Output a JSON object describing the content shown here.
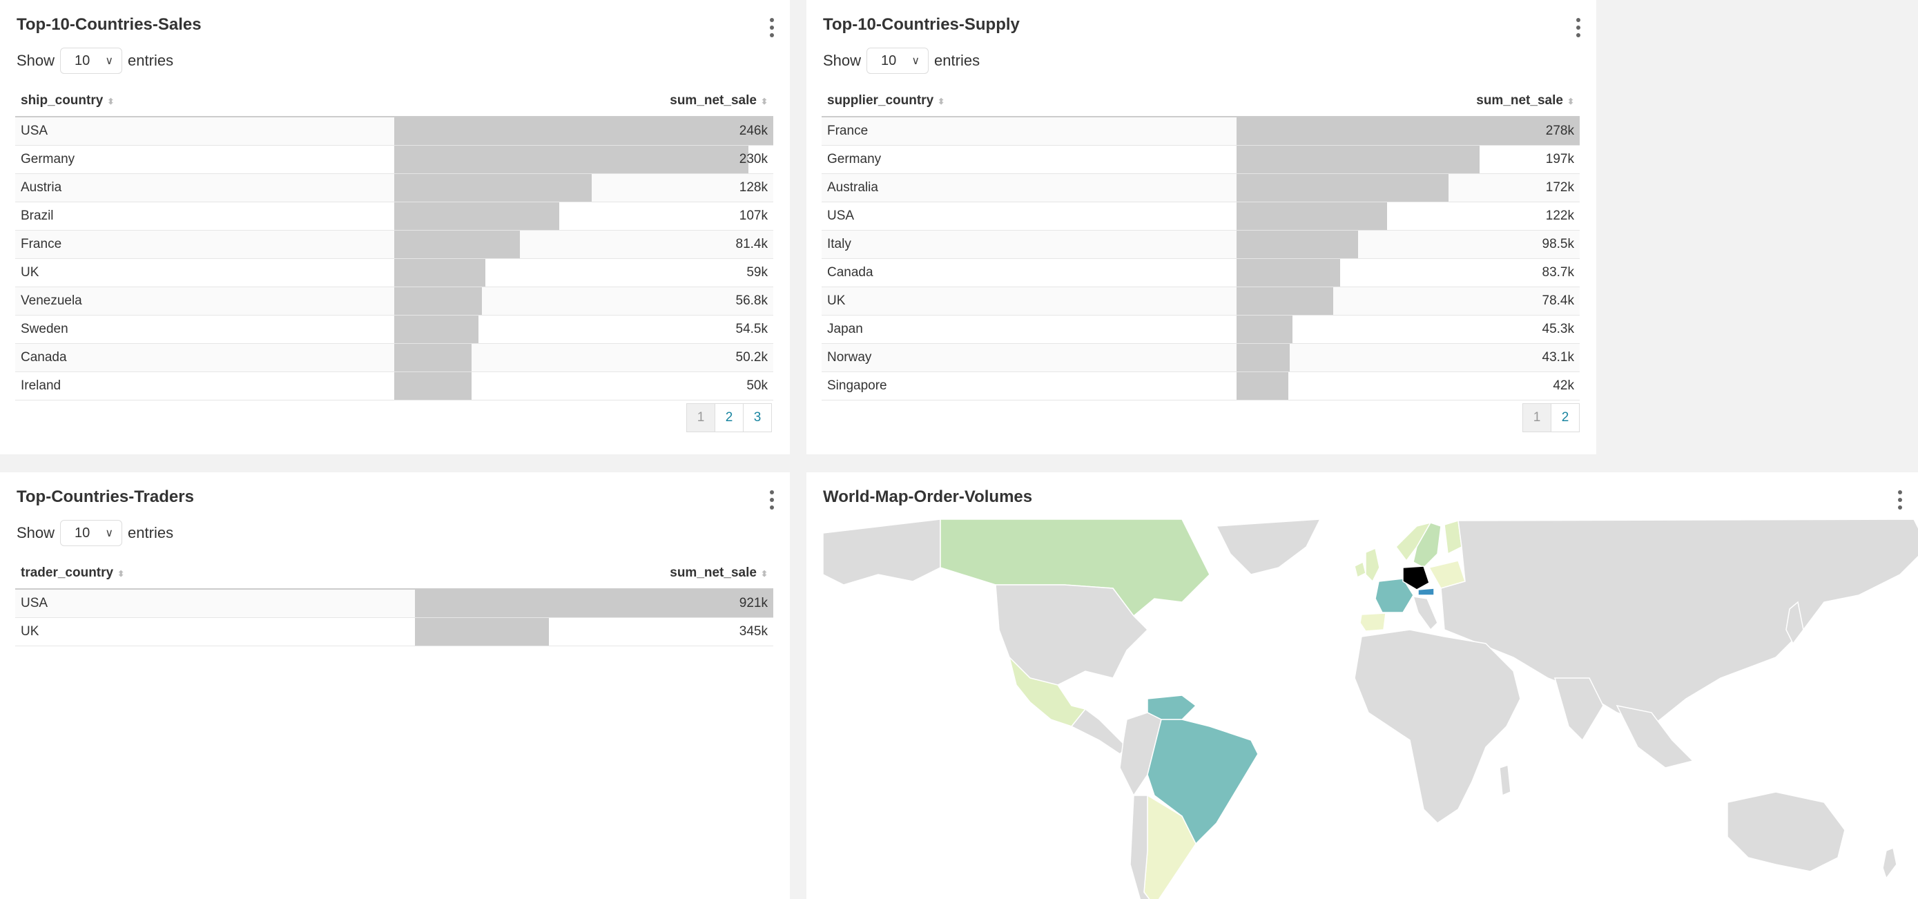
{
  "sales": {
    "title": "Top-10-Countries-Sales",
    "show_label": "Show",
    "entries_label": "entries",
    "page_size": "10",
    "col_country": "ship_country",
    "col_value": "sum_net_sale",
    "rows": [
      {
        "country": "USA",
        "value": "246k",
        "amount": 246
      },
      {
        "country": "Germany",
        "value": "230k",
        "amount": 230
      },
      {
        "country": "Austria",
        "value": "128k",
        "amount": 128
      },
      {
        "country": "Brazil",
        "value": "107k",
        "amount": 107
      },
      {
        "country": "France",
        "value": "81.4k",
        "amount": 81.4
      },
      {
        "country": "UK",
        "value": "59k",
        "amount": 59
      },
      {
        "country": "Venezuela",
        "value": "56.8k",
        "amount": 56.8
      },
      {
        "country": "Sweden",
        "value": "54.5k",
        "amount": 54.5
      },
      {
        "country": "Canada",
        "value": "50.2k",
        "amount": 50.2
      },
      {
        "country": "Ireland",
        "value": "50k",
        "amount": 50
      }
    ],
    "pages": [
      "1",
      "2",
      "3"
    ]
  },
  "supply": {
    "title": "Top-10-Countries-Supply",
    "show_label": "Show",
    "entries_label": "entries",
    "page_size": "10",
    "col_country": "supplier_country",
    "col_value": "sum_net_sale",
    "rows": [
      {
        "country": "France",
        "value": "278k",
        "amount": 278
      },
      {
        "country": "Germany",
        "value": "197k",
        "amount": 197
      },
      {
        "country": "Australia",
        "value": "172k",
        "amount": 172
      },
      {
        "country": "USA",
        "value": "122k",
        "amount": 122
      },
      {
        "country": "Italy",
        "value": "98.5k",
        "amount": 98.5
      },
      {
        "country": "Canada",
        "value": "83.7k",
        "amount": 83.7
      },
      {
        "country": "UK",
        "value": "78.4k",
        "amount": 78.4
      },
      {
        "country": "Japan",
        "value": "45.3k",
        "amount": 45.3
      },
      {
        "country": "Norway",
        "value": "43.1k",
        "amount": 43.1
      },
      {
        "country": "Singapore",
        "value": "42k",
        "amount": 42
      }
    ],
    "pages": [
      "1",
      "2"
    ]
  },
  "traders": {
    "title": "Top-Countries-Traders",
    "show_label": "Show",
    "entries_label": "entries",
    "page_size": "10",
    "col_country": "trader_country",
    "col_value": "sum_net_sale",
    "rows": [
      {
        "country": "USA",
        "value": "921k",
        "amount": 921
      },
      {
        "country": "UK",
        "value": "345k",
        "amount": 345
      }
    ]
  },
  "worldmap": {
    "title": "World-Map-Order-Volumes",
    "colors": {
      "land": "#dcdcdc",
      "border": "#ffffff",
      "teal": "#7bbfbd",
      "light_green": "#c3e2b5",
      "pale_yellow": "#eef4cc",
      "pale_green": "#e0efc2",
      "blue": "#3a8fc0",
      "black": "#000000"
    }
  }
}
